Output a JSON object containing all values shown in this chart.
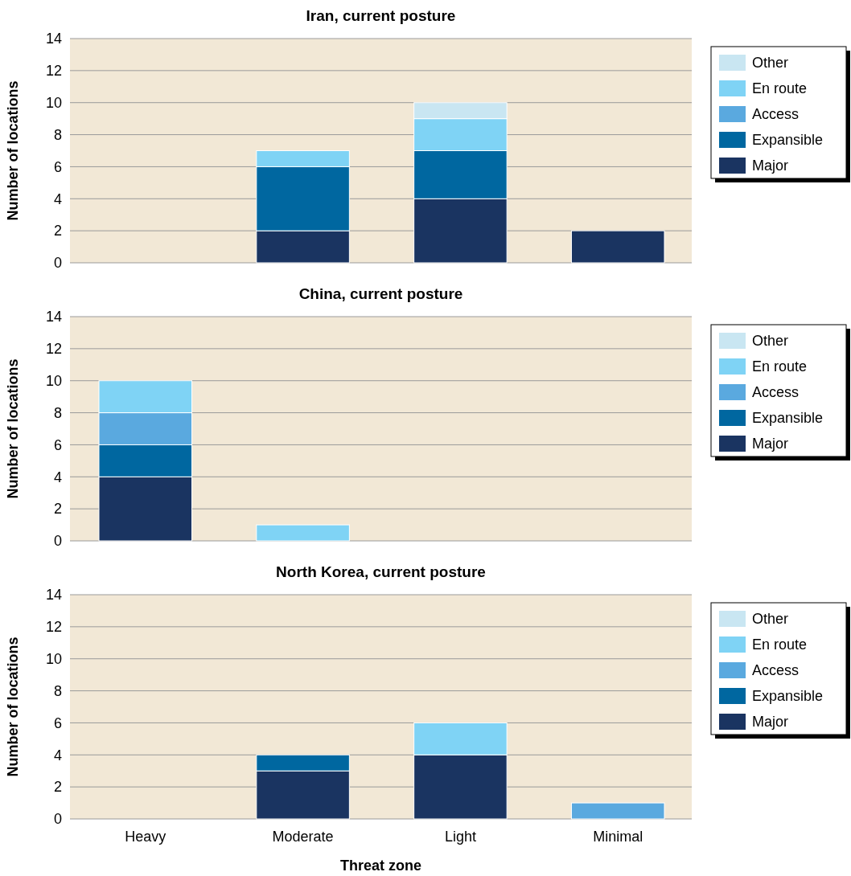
{
  "chart_data": [
    {
      "type": "bar",
      "title": "Iran, current posture",
      "ylabel": "Number of locations",
      "categories": [
        null,
        null,
        null,
        null
      ],
      "stacked": true,
      "ylim": [
        0,
        14
      ],
      "yticks": [
        0,
        2,
        4,
        6,
        8,
        10,
        12,
        14
      ],
      "grid": "y",
      "legend": "top right",
      "tick_labels": "y",
      "series": [
        {
          "name": "Major",
          "color": "#1a3461",
          "values": [
            0,
            2,
            4,
            2
          ]
        },
        {
          "name": "Expansible",
          "color": "#0067a0",
          "values": [
            0,
            4,
            3,
            0
          ]
        },
        {
          "name": "Access",
          "color": "#5aa9df",
          "values": [
            0,
            0,
            0,
            0
          ]
        },
        {
          "name": "En route",
          "color": "#7fd3f5",
          "values": [
            0,
            1,
            2,
            0
          ]
        },
        {
          "name": "Other",
          "color": "#c9e6f2",
          "values": [
            0,
            0,
            1,
            0
          ]
        }
      ]
    },
    {
      "type": "bar",
      "title": "China, current posture",
      "ylabel": "Number of locations",
      "categories": [
        null,
        null,
        null,
        null
      ],
      "stacked": true,
      "ylim": [
        0,
        14
      ],
      "yticks": [
        0,
        2,
        4,
        6,
        8,
        10,
        12,
        14
      ],
      "grid": "y",
      "legend": "top right",
      "tick_labels": "y",
      "series": [
        {
          "name": "Major",
          "color": "#1a3461",
          "values": [
            4,
            0,
            0,
            0
          ]
        },
        {
          "name": "Expansible",
          "color": "#0067a0",
          "values": [
            2,
            0,
            0,
            0
          ]
        },
        {
          "name": "Access",
          "color": "#5aa9df",
          "values": [
            2,
            0,
            0,
            0
          ]
        },
        {
          "name": "En route",
          "color": "#7fd3f5",
          "values": [
            2,
            1,
            0,
            0
          ]
        },
        {
          "name": "Other",
          "color": "#c9e6f2",
          "values": [
            0,
            0,
            0,
            0
          ]
        }
      ]
    },
    {
      "type": "bar",
      "title": "North Korea, current posture",
      "xlabel": "Threat zone",
      "ylabel": "Number of locations",
      "categories": [
        "Heavy",
        "Moderate",
        "Light",
        "Minimal"
      ],
      "stacked": true,
      "ylim": [
        0,
        14
      ],
      "yticks": [
        0,
        2,
        4,
        6,
        8,
        10,
        12,
        14
      ],
      "grid": "y",
      "legend": "top right",
      "series": [
        {
          "name": "Major",
          "color": "#1a3461",
          "values": [
            0,
            3,
            4,
            0
          ]
        },
        {
          "name": "Expansible",
          "color": "#0067a0",
          "values": [
            0,
            1,
            0,
            0
          ]
        },
        {
          "name": "Access",
          "color": "#5aa9df",
          "values": [
            0,
            0,
            0,
            1
          ]
        },
        {
          "name": "En route",
          "color": "#7fd3f5",
          "values": [
            0,
            0,
            2,
            0
          ]
        },
        {
          "name": "Other",
          "color": "#c9e6f2",
          "values": [
            0,
            0,
            0,
            0
          ]
        }
      ]
    }
  ]
}
